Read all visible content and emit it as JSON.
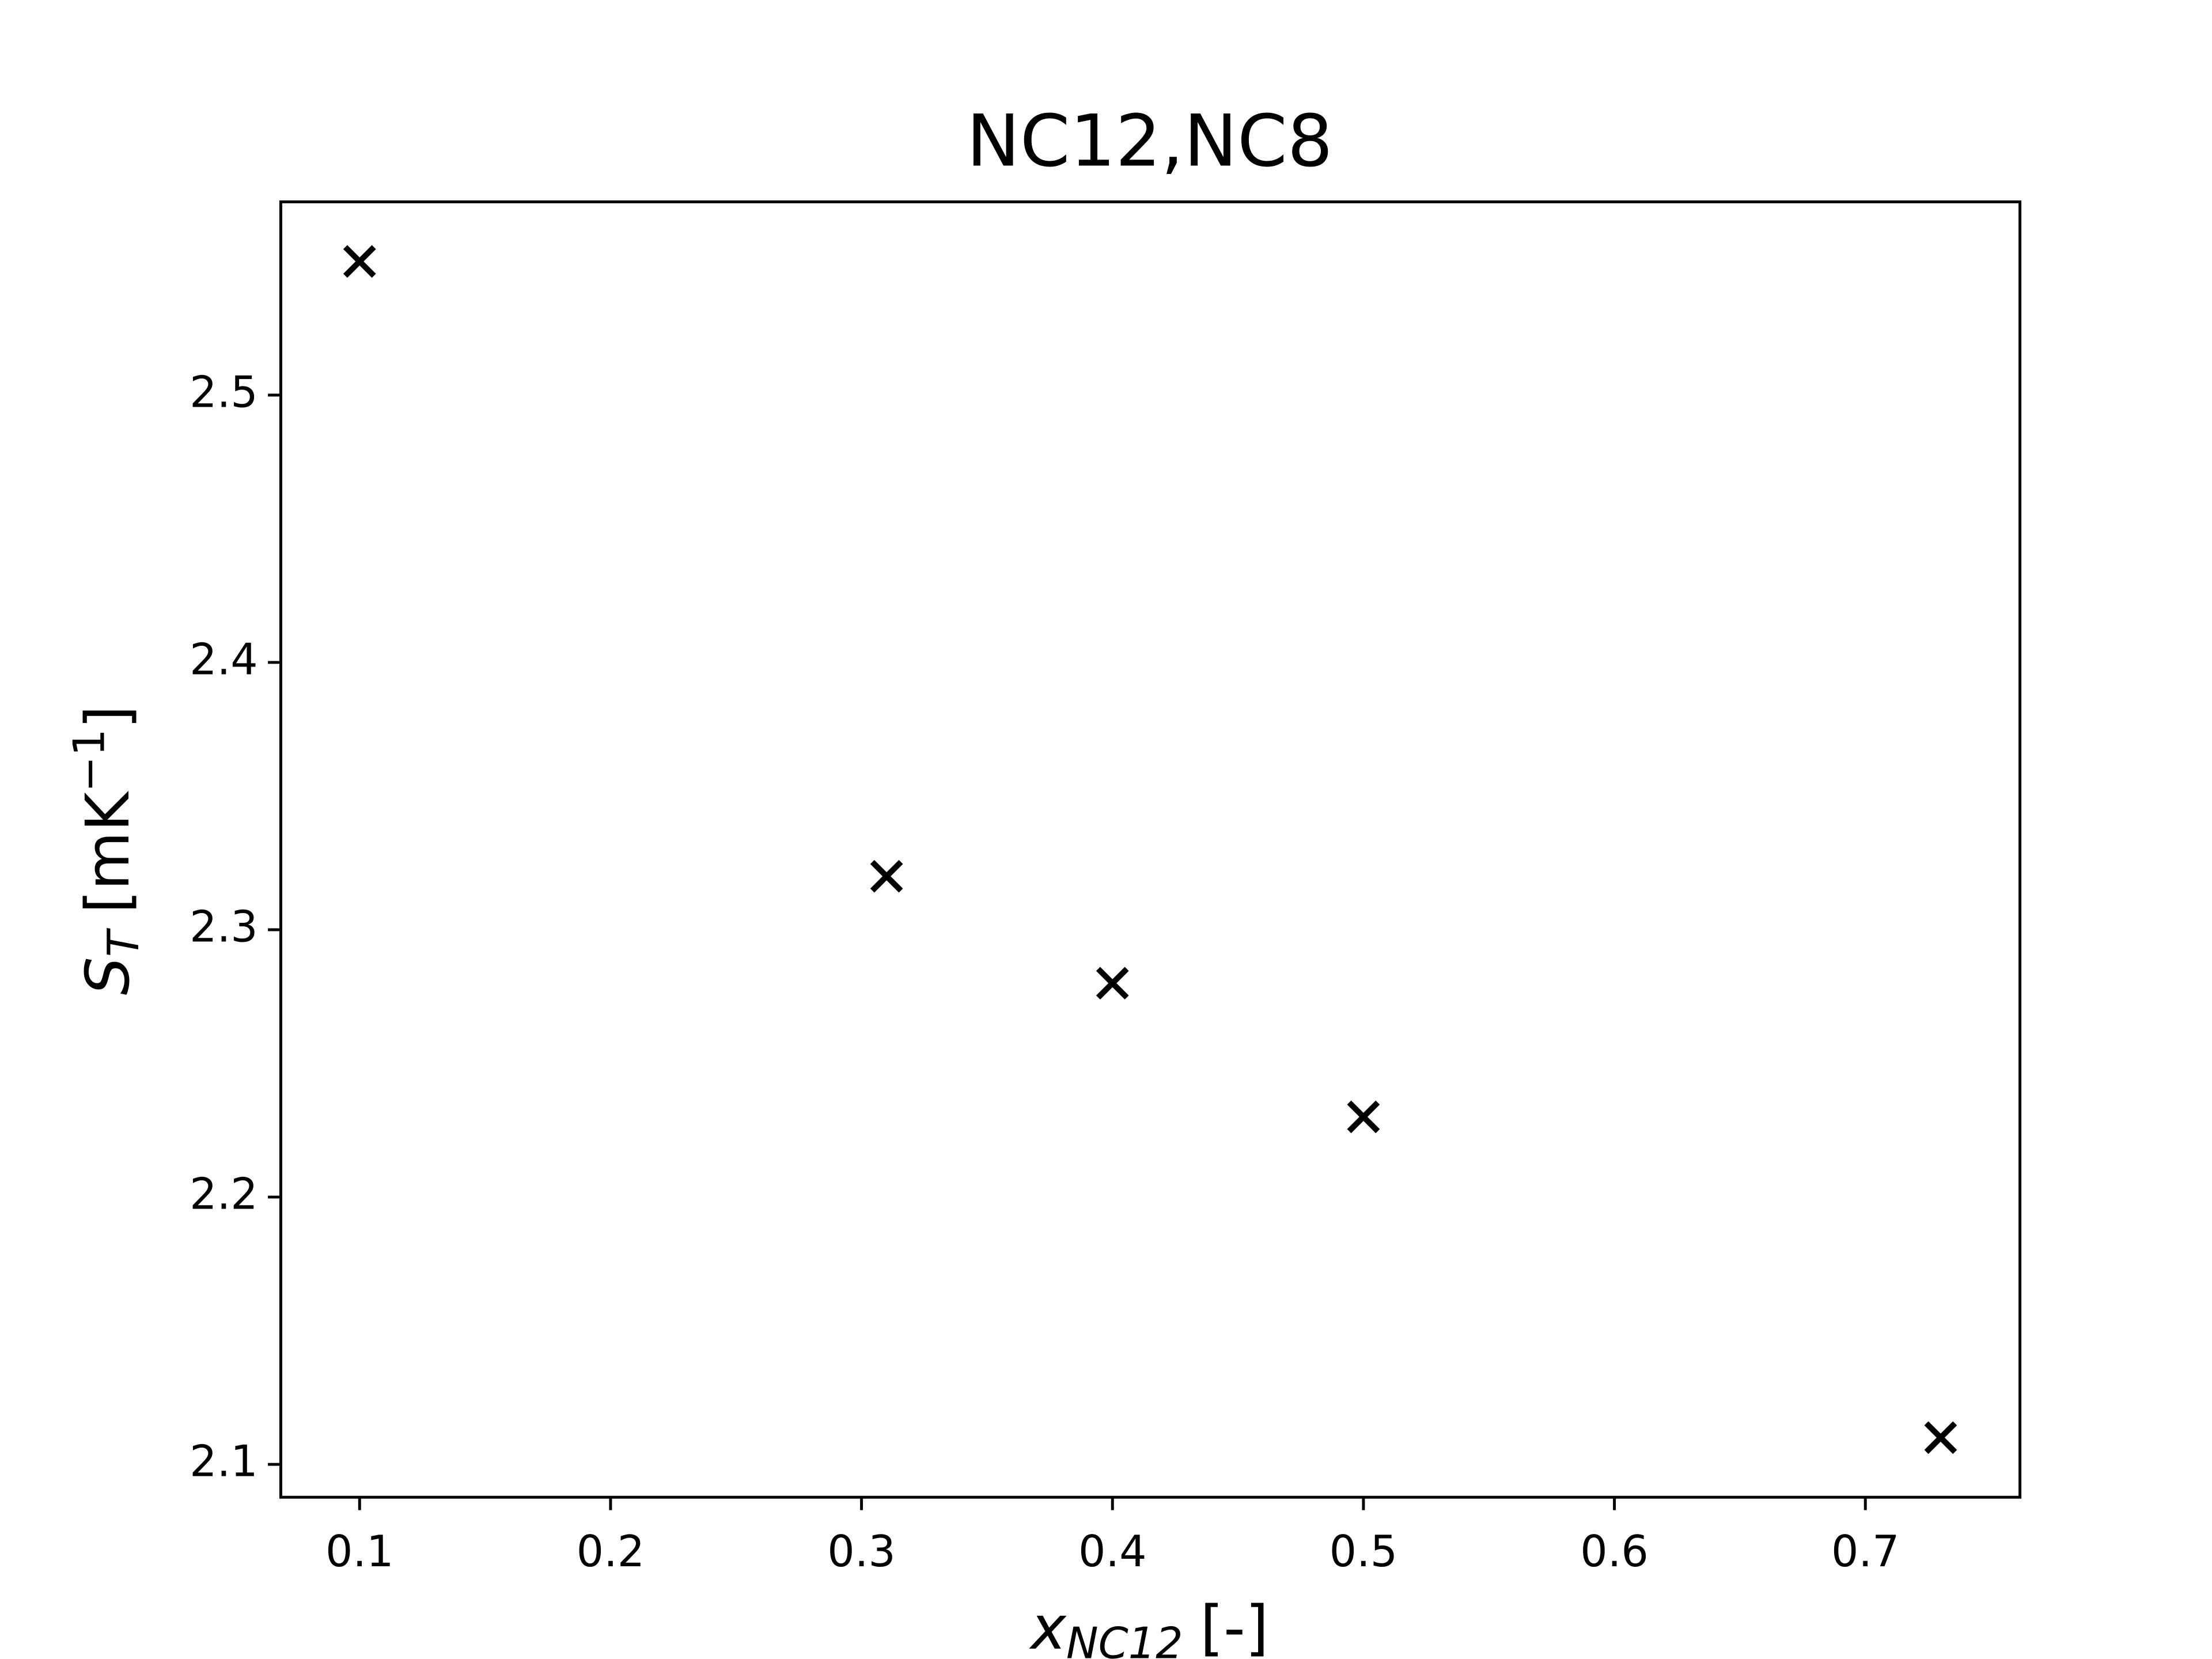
{
  "chart_data": {
    "type": "scatter",
    "title": "NC12,NC8",
    "xlabel": {
      "symbol": "x",
      "subscript": "NC12",
      "unit": "[-]"
    },
    "ylabel": {
      "symbol": "S",
      "subscript": "T",
      "unit": "[mK",
      "superscript": "−1",
      "close": "]"
    },
    "x": [
      0.1,
      0.31,
      0.4,
      0.5,
      0.73
    ],
    "series": [
      {
        "values": [
          2.55,
          2.32,
          2.28,
          2.23,
          2.11
        ],
        "color": "#000000",
        "marker": "x"
      }
    ],
    "xlim": [
      0.0686,
      0.7616
    ],
    "ylim": [
      2.0877,
      2.5723
    ],
    "xticks": [
      0.1,
      0.2,
      0.3,
      0.4,
      0.5,
      0.6,
      0.7
    ],
    "yticks": [
      2.1,
      2.2,
      2.3,
      2.4,
      2.5
    ],
    "grid": false
  }
}
